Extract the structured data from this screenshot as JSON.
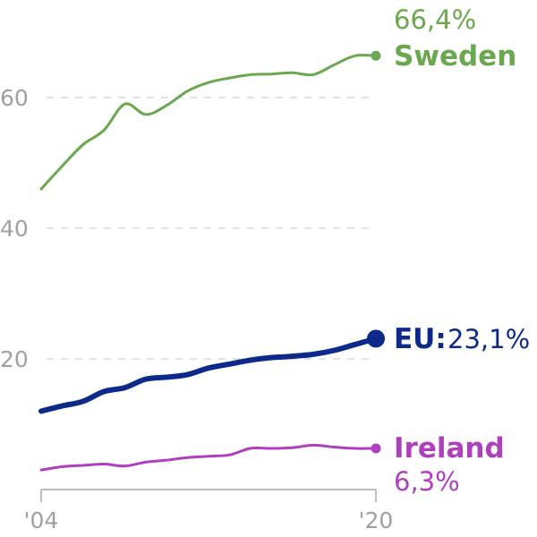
{
  "chart_data": {
    "type": "line",
    "title": "",
    "xlabel": "",
    "ylabel": "",
    "x": [
      2004,
      2005,
      2006,
      2007,
      2008,
      2009,
      2010,
      2011,
      2012,
      2013,
      2014,
      2015,
      2016,
      2017,
      2018,
      2019,
      2020
    ],
    "x_tick_labels": [
      "'04",
      "'20"
    ],
    "y_ticks": [
      20,
      40,
      60
    ],
    "ylim": [
      0,
      72
    ],
    "xlim": [
      2004,
      2020
    ],
    "grid": "horizontal dashed",
    "series": [
      {
        "name": "Sweden",
        "color": "#6aa84f",
        "values": [
          46.0,
          49.5,
          52.8,
          55.0,
          59.0,
          57.4,
          58.8,
          61.0,
          62.3,
          63.0,
          63.5,
          63.6,
          63.8,
          63.5,
          65.0,
          66.4,
          66.4
        ],
        "end_value_label": "66,4%",
        "end_name_label": "Sweden"
      },
      {
        "name": "EU:",
        "color": "#0d2a8a",
        "values": [
          12.0,
          12.8,
          13.5,
          15.0,
          15.6,
          16.9,
          17.2,
          17.6,
          18.6,
          19.2,
          19.8,
          20.2,
          20.4,
          20.7,
          21.3,
          22.2,
          23.1
        ],
        "end_value_label": "23,1%",
        "end_name_label": "EU:"
      },
      {
        "name": "Ireland",
        "color": "#b03fbd",
        "values": [
          3.0,
          3.5,
          3.7,
          3.9,
          3.6,
          4.2,
          4.5,
          4.9,
          5.1,
          5.3,
          6.3,
          6.3,
          6.4,
          6.8,
          6.5,
          6.3,
          6.3
        ],
        "end_value_label": "6,3%",
        "end_name_label": "Ireland"
      }
    ]
  }
}
